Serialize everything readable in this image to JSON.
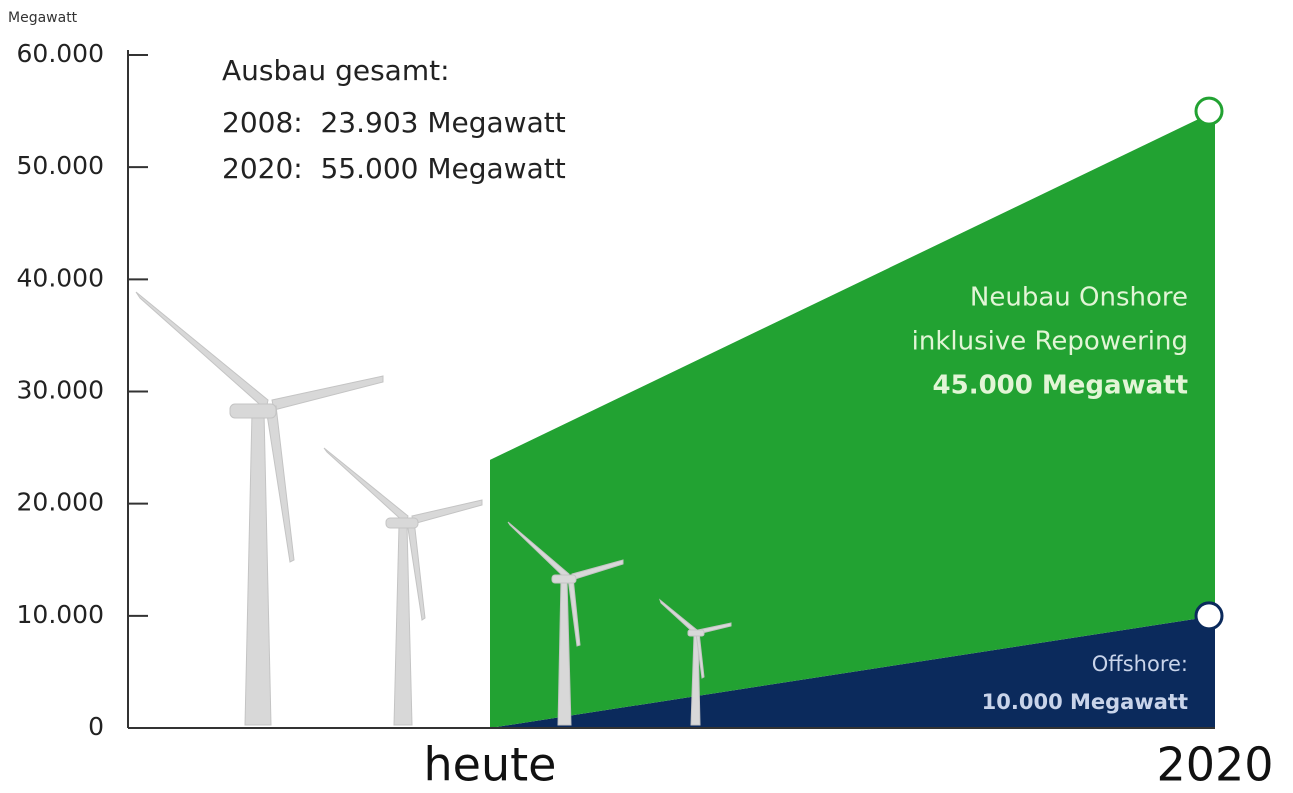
{
  "chart_data": {
    "type": "area",
    "stacked": true,
    "y_label": "Megawatt",
    "categories": [
      "heute",
      "2020"
    ],
    "series": [
      {
        "name": "Offshore:",
        "color": "#0b2a5c",
        "label_color": "#c9d4ea",
        "values": [
          0,
          10000
        ],
        "value_labels": [
          null,
          "10.000 Megawatt"
        ]
      },
      {
        "name": "Neubau Onshore",
        "color": "#22a232",
        "label_color": "#e2f5d6",
        "values": [
          23903,
          45000
        ],
        "value_labels": [
          null,
          "45.000 Megawatt"
        ]
      }
    ],
    "annotations": [
      "Ausbau gesamt:",
      "2008:  23.903 Megawatt",
      "2020:  55.000 Megawatt",
      "inklusive Repowering"
    ],
    "ylim": [
      0,
      60000
    ],
    "yticks": [
      0,
      {
        "value": 10000,
        "label": "10.000"
      },
      {
        "value": 20000,
        "label": "20.000"
      },
      {
        "value": 30000,
        "label": "30.000"
      },
      {
        "value": 40000,
        "label": "40.000"
      },
      {
        "value": 50000,
        "label": "50.000"
      },
      {
        "value": 60000,
        "label": "60.000"
      }
    ]
  }
}
